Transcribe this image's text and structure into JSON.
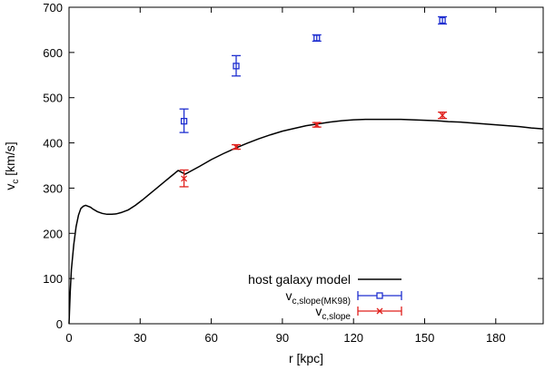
{
  "chart_data": {
    "type": "line",
    "title": "",
    "xlabel": {
      "main": "r [kpc]"
    },
    "ylabel": {
      "main": "v",
      "sub": "c",
      "unit": " [km/s]"
    },
    "xlim": [
      0,
      200
    ],
    "ylim": [
      0,
      700
    ],
    "xticks": [
      0,
      30,
      60,
      90,
      120,
      150,
      180
    ],
    "yticks": [
      0,
      100,
      200,
      300,
      400,
      500,
      600,
      700
    ],
    "grid": false,
    "legend_position": "bottom-right",
    "series": [
      {
        "name": "host galaxy model",
        "legend": {
          "main": "host galaxy model",
          "sub": ""
        },
        "kind": "line",
        "color": "#000000",
        "x": [
          0,
          0.5,
          1,
          2,
          3,
          4,
          5,
          6,
          7,
          8,
          9,
          10,
          12,
          14,
          16,
          18,
          20,
          22,
          25,
          28,
          31,
          34,
          37,
          40,
          43,
          46,
          49,
          55,
          60,
          65,
          70,
          75,
          80,
          85,
          90,
          95,
          100,
          105,
          110,
          115,
          120,
          125,
          130,
          135,
          140,
          145,
          150,
          155,
          160,
          165,
          170,
          175,
          180,
          185,
          190,
          195,
          200
        ],
        "y": [
          0,
          70,
          120,
          175,
          215,
          240,
          255,
          260,
          262,
          260,
          258,
          254,
          248,
          244,
          242,
          242,
          243,
          246,
          252,
          262,
          274,
          287,
          300,
          313,
          326,
          339,
          331,
          348,
          363,
          376,
          388,
          399,
          409,
          418,
          426,
          432,
          438,
          442,
          446,
          449,
          451,
          452,
          452,
          452,
          452,
          451,
          450,
          449,
          447,
          446,
          444,
          442,
          440,
          438,
          436,
          433,
          431
        ]
      },
      {
        "name": "v_c,slope(MK98)",
        "legend": {
          "main": "v",
          "sub": "c,slope(MK98)"
        },
        "kind": "errorbar",
        "marker": "square",
        "color": "#1f2fd0",
        "x": [
          48.5,
          70.5,
          104.5,
          157.5
        ],
        "y": [
          448,
          570,
          632,
          671
        ],
        "yerr_low": [
          25,
          22,
          7,
          8
        ],
        "yerr_high": [
          27,
          23,
          7,
          8
        ]
      },
      {
        "name": "v_c,slope",
        "legend": {
          "main": "v",
          "sub": "c,slope"
        },
        "kind": "errorbar",
        "marker": "x",
        "color": "#e0201c",
        "x": [
          48.5,
          70.5,
          104.5,
          157.5
        ],
        "y": [
          321,
          391,
          440,
          461
        ],
        "yerr_low": [
          18,
          5,
          5,
          7
        ],
        "yerr_high": [
          19,
          5,
          5,
          7
        ]
      }
    ]
  }
}
